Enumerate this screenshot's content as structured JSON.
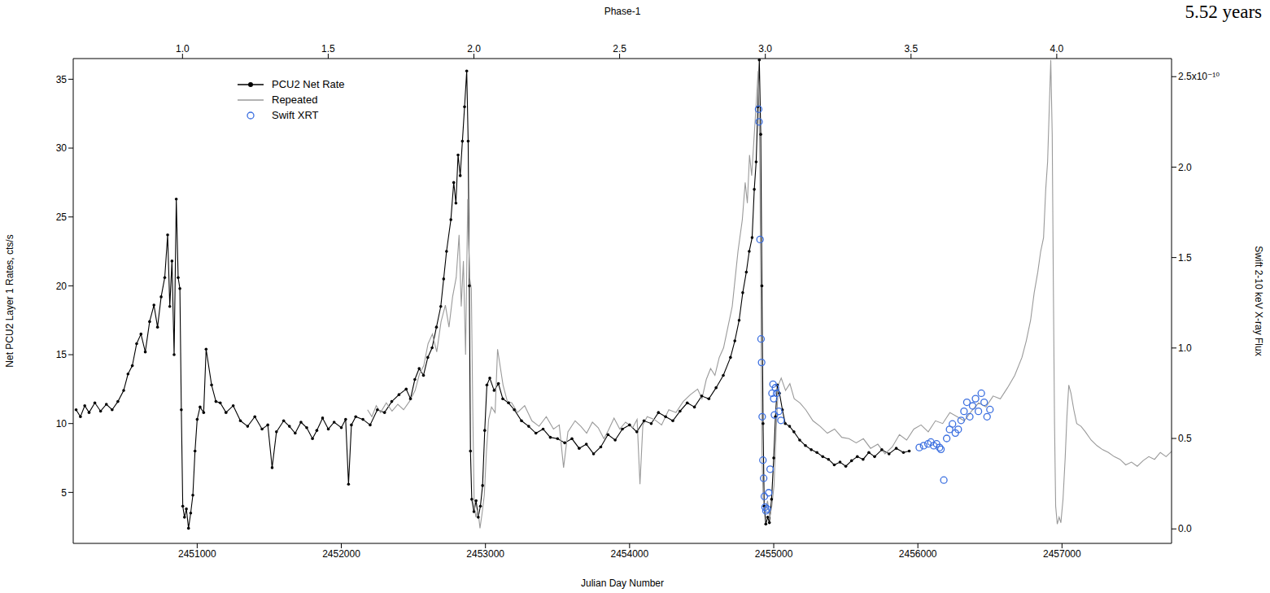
{
  "chart_data": {
    "type": "line",
    "xlabel": "Julian Day Number",
    "x2label": "Phase-1",
    "ylabel": "Net PCU2 Layer 1 Rates, cts/s",
    "y2label": "Swift 2-10 keV X-ray Flux",
    "annotations": [
      {
        "text": "5.52 years"
      }
    ],
    "legend": "upper left",
    "grid": false,
    "xlim": [
      2450140,
      2457760
    ],
    "xticks": [
      2451000,
      2452000,
      2453000,
      2454000,
      2455000,
      2456000,
      2457000
    ],
    "x2lim": [
      0.625,
      4.394
    ],
    "x2ticks": [
      {
        "value": 1,
        "label": "1.0"
      },
      1.5,
      {
        "value": 2,
        "label": "2.0"
      },
      2.5,
      {
        "value": 3,
        "label": "3.0"
      },
      3.5,
      {
        "value": 4,
        "label": "4.0"
      }
    ],
    "ylim": [
      1.3,
      36.5
    ],
    "yticks": [
      5,
      10,
      15,
      20,
      25,
      30,
      35
    ],
    "y2lim": [
      -0.08,
      2.6
    ],
    "y2ticks": [
      {
        "value": 0,
        "label": "0.0"
      },
      0.5,
      {
        "value": 1,
        "label": "1.0"
      },
      1.5,
      {
        "value": 2,
        "label": "2.0"
      },
      {
        "value": 2.5,
        "label": "2.5x10⁻¹⁰"
      }
    ],
    "series": [
      {
        "name": "PCU2 Net Rate",
        "color": "#000000",
        "marker": "circle",
        "line_style": "solid",
        "axis": "y",
        "x": [
          2450160,
          2450190,
          2450220,
          2450250,
          2450290,
          2450330,
          2450370,
          2450410,
          2450450,
          2450490,
          2450520,
          2450550,
          2450580,
          2450610,
          2450640,
          2450670,
          2450700,
          2450725,
          2450750,
          2450775,
          2450795,
          2450810,
          2450825,
          2450840,
          2450855,
          2450868,
          2450880,
          2450890,
          2450900,
          2450912,
          2450925,
          2450940,
          2450955,
          2450970,
          2450985,
          2451000,
          2451020,
          2451045,
          2451062,
          2451100,
          2451130,
          2451160,
          2451200,
          2451250,
          2451300,
          2451350,
          2451400,
          2451450,
          2451490,
          2451520,
          2451550,
          2451600,
          2451640,
          2451680,
          2451720,
          2451760,
          2451800,
          2451830,
          2451870,
          2451910,
          2451950,
          2452000,
          2452030,
          2452050,
          2452070,
          2452100,
          2452150,
          2452200,
          2452250,
          2452300,
          2452350,
          2452400,
          2452450,
          2452480,
          2452510,
          2452540,
          2452570,
          2452600,
          2452630,
          2452660,
          2452690,
          2452710,
          2452730,
          2452760,
          2452780,
          2452795,
          2452810,
          2452825,
          2452840,
          2452855,
          2452870,
          2452880,
          2452888,
          2452896,
          2452905,
          2452920,
          2452935,
          2452950,
          2452965,
          2452980,
          2452995,
          2453010,
          2453030,
          2453060,
          2453090,
          2453120,
          2453160,
          2453200,
          2453250,
          2453300,
          2453350,
          2453400,
          2453450,
          2453500,
          2453550,
          2453600,
          2453650,
          2453700,
          2453750,
          2453800,
          2453850,
          2453900,
          2453950,
          2454000,
          2454050,
          2454100,
          2454150,
          2454200,
          2454250,
          2454300,
          2454350,
          2454400,
          2454450,
          2454500,
          2454550,
          2454600,
          2454650,
          2454700,
          2454730,
          2454760,
          2454785,
          2454810,
          2454830,
          2454850,
          2454865,
          2454878,
          2454890,
          2454900,
          2454910,
          2454918,
          2454926,
          2454934,
          2454945,
          2454958,
          2454970,
          2454985,
          2455000,
          2455012,
          2455025,
          2455040,
          2455060,
          2455080,
          2455110,
          2455140,
          2455180,
          2455220,
          2455260,
          2455300,
          2455340,
          2455380,
          2455420,
          2455460,
          2455500,
          2455540,
          2455580,
          2455620,
          2455660,
          2455700,
          2455750,
          2455800,
          2455850,
          2455900,
          2455940
        ],
        "values": [
          11.0,
          10.5,
          11.3,
          10.8,
          11.5,
          10.9,
          11.4,
          11.0,
          11.6,
          12.4,
          13.6,
          14.2,
          15.8,
          16.5,
          15.2,
          17.4,
          18.6,
          17.0,
          19.2,
          20.6,
          23.7,
          18.5,
          21.8,
          15.0,
          26.3,
          20.6,
          19.8,
          11.0,
          4.0,
          3.2,
          3.8,
          2.4,
          3.5,
          4.8,
          8.0,
          10.3,
          11.2,
          10.8,
          15.4,
          12.8,
          11.6,
          11.5,
          10.8,
          11.3,
          10.2,
          9.8,
          10.5,
          9.6,
          9.9,
          6.8,
          9.4,
          10.2,
          9.8,
          9.3,
          10.1,
          9.7,
          8.9,
          9.5,
          10.4,
          9.6,
          10.1,
          9.7,
          10.3,
          5.6,
          9.9,
          10.5,
          10.3,
          9.9,
          11.0,
          10.8,
          11.6,
          12.1,
          12.5,
          11.8,
          13.2,
          14.0,
          13.5,
          14.8,
          15.5,
          17.0,
          18.5,
          20.5,
          22.5,
          24.8,
          27.5,
          26.0,
          29.5,
          28.0,
          30.5,
          33.0,
          35.6,
          30.5,
          20.0,
          8.0,
          4.5,
          3.6,
          4.4,
          3.2,
          4.0,
          5.5,
          9.5,
          12.8,
          13.3,
          12.4,
          12.9,
          11.8,
          11.5,
          11.0,
          10.2,
          9.8,
          9.3,
          9.6,
          9.0,
          8.9,
          8.6,
          8.9,
          8.2,
          8.5,
          7.8,
          8.3,
          9.2,
          8.8,
          9.6,
          9.9,
          9.4,
          10.2,
          10.0,
          10.8,
          10.5,
          10.2,
          10.9,
          11.5,
          11.2,
          12.0,
          11.8,
          12.6,
          13.5,
          14.8,
          16.0,
          17.5,
          19.5,
          21.0,
          22.5,
          23.5,
          27.0,
          29.0,
          33.0,
          36.4,
          31.0,
          20.0,
          10.0,
          4.0,
          2.7,
          3.2,
          2.8,
          4.5,
          7.5,
          10.5,
          12.8,
          12.2,
          11.0,
          10.0,
          9.8,
          9.4,
          8.8,
          8.4,
          8.1,
          7.9,
          7.6,
          7.4,
          7.0,
          7.2,
          6.9,
          7.3,
          7.6,
          7.4,
          7.9,
          7.6,
          8.1,
          7.8,
          8.2,
          7.9,
          8.0
        ]
      },
      {
        "name": "Repeated",
        "color": "#9a9a9a",
        "marker": "none",
        "line_style": "solid",
        "axis": "y",
        "x": [
          2452182,
          2452212,
          2452242,
          2452272,
          2452312,
          2452352,
          2452392,
          2452432,
          2452472,
          2452512,
          2452542,
          2452572,
          2452602,
          2452632,
          2452662,
          2452692,
          2452722,
          2452747,
          2452772,
          2452797,
          2452817,
          2452832,
          2452847,
          2452862,
          2452877,
          2452890,
          2452902,
          2452912,
          2452922,
          2452934,
          2452947,
          2452962,
          2452977,
          2452992,
          2453007,
          2453022,
          2453042,
          2453067,
          2453084,
          2453122,
          2453152,
          2453182,
          2453222,
          2453272,
          2453322,
          2453372,
          2453422,
          2453472,
          2453512,
          2453542,
          2453572,
          2453622,
          2453662,
          2453702,
          2453742,
          2453782,
          2453822,
          2453852,
          2453892,
          2453932,
          2453972,
          2454022,
          2454052,
          2454072,
          2454092,
          2454122,
          2454172,
          2454222,
          2454272,
          2454322,
          2454372,
          2454422,
          2454472,
          2454502,
          2454532,
          2454562,
          2454592,
          2454622,
          2454652,
          2454682,
          2454712,
          2454732,
          2454752,
          2454782,
          2454802,
          2454817,
          2454832,
          2454847,
          2454862,
          2454877,
          2454892,
          2454902,
          2454910,
          2454918,
          2454927,
          2454942,
          2454957,
          2454972,
          2454987,
          2455002,
          2455017,
          2455032,
          2455052,
          2455082,
          2455112,
          2455142,
          2455182,
          2455222,
          2455272,
          2455322,
          2455372,
          2455422,
          2455472,
          2455522,
          2455572,
          2455622,
          2455672,
          2455722,
          2455772,
          2455822,
          2455872,
          2455922,
          2455972,
          2456022,
          2456072,
          2456122,
          2456172,
          2456222,
          2456272,
          2456322,
          2456372,
          2456422,
          2456472,
          2456522,
          2456572,
          2456622,
          2456672,
          2456722,
          2456752,
          2456782,
          2456807,
          2456832,
          2456852,
          2456872,
          2456887,
          2456900,
          2456912,
          2456922,
          2456932,
          2456940,
          2456948,
          2456956,
          2456967,
          2456980,
          2456992,
          2457007,
          2457022,
          2457034,
          2457047,
          2457062,
          2457082,
          2457102,
          2457132,
          2457162,
          2457202,
          2457242,
          2457282,
          2457322,
          2457362,
          2457402,
          2457442,
          2457482,
          2457522,
          2457562,
          2457602,
          2457642,
          2457682,
          2457722,
          2457772
        ],
        "values": [
          11.0,
          10.5,
          11.3,
          10.8,
          11.5,
          10.9,
          11.4,
          11.0,
          11.6,
          12.4,
          13.6,
          14.2,
          15.8,
          16.5,
          15.2,
          17.4,
          18.6,
          17.0,
          19.2,
          20.6,
          23.7,
          18.5,
          21.8,
          15.0,
          26.3,
          20.6,
          19.8,
          11.0,
          4.0,
          3.2,
          3.8,
          2.4,
          3.5,
          4.8,
          8.0,
          10.3,
          11.2,
          10.8,
          15.4,
          12.8,
          11.6,
          11.5,
          10.8,
          11.3,
          10.2,
          9.8,
          10.5,
          9.6,
          9.9,
          6.8,
          9.4,
          10.2,
          9.8,
          9.3,
          10.1,
          9.7,
          8.9,
          9.5,
          10.4,
          9.6,
          10.1,
          9.7,
          10.3,
          5.6,
          9.9,
          10.5,
          10.3,
          9.9,
          11.0,
          10.8,
          11.6,
          12.1,
          12.5,
          11.8,
          13.2,
          14.0,
          13.5,
          14.8,
          15.5,
          17.0,
          18.5,
          20.5,
          22.5,
          24.8,
          27.5,
          26.0,
          29.5,
          28.0,
          30.5,
          33.0,
          35.6,
          30.5,
          20.0,
          8.0,
          4.5,
          3.6,
          4.4,
          3.2,
          4.0,
          5.5,
          9.5,
          12.8,
          13.3,
          12.4,
          12.9,
          11.8,
          11.5,
          11.0,
          10.2,
          9.8,
          9.3,
          9.6,
          9.0,
          8.9,
          8.6,
          8.9,
          8.2,
          8.5,
          7.8,
          8.3,
          9.2,
          8.8,
          9.6,
          9.9,
          9.4,
          10.2,
          10.0,
          10.8,
          10.5,
          10.2,
          10.9,
          11.5,
          11.2,
          12.0,
          11.8,
          12.6,
          13.5,
          14.8,
          16.0,
          17.5,
          19.5,
          21.0,
          22.5,
          23.5,
          27.0,
          29.0,
          33.0,
          36.4,
          31.0,
          20.0,
          10.0,
          4.0,
          2.7,
          3.2,
          2.8,
          4.5,
          7.5,
          10.5,
          12.8,
          12.2,
          11.0,
          10.0,
          9.8,
          9.4,
          8.8,
          8.4,
          8.1,
          7.9,
          7.6,
          7.4,
          7.0,
          7.2,
          6.9,
          7.3,
          7.6,
          7.4,
          7.9,
          7.6,
          8.1
        ]
      },
      {
        "name": "Swift XRT",
        "color": "#3b6fe0",
        "marker": "open_circle",
        "line_style": "none",
        "axis": "y2",
        "x": [
          2454895,
          2454898,
          2454905,
          2454912,
          2454916,
          2454920,
          2454925,
          2454930,
          2454935,
          2454940,
          2454946,
          2454955,
          2454965,
          2454975,
          2454988,
          2454995,
          2455000,
          2455005,
          2455012,
          2455020,
          2455035,
          2455050,
          2456010,
          2456040,
          2456070,
          2456090,
          2456110,
          2456130,
          2456150,
          2456160,
          2456180,
          2456200,
          2456220,
          2456240,
          2456260,
          2456280,
          2456300,
          2456320,
          2456340,
          2456360,
          2456380,
          2456400,
          2456420,
          2456440,
          2456460,
          2456480,
          2456500
        ],
        "values": [
          2.32,
          2.25,
          1.6,
          1.05,
          0.92,
          0.62,
          0.38,
          0.28,
          0.18,
          0.12,
          0.1,
          0.11,
          0.2,
          0.33,
          0.75,
          0.8,
          0.72,
          0.63,
          0.78,
          0.75,
          0.65,
          0.6,
          0.45,
          0.46,
          0.47,
          0.48,
          0.46,
          0.47,
          0.45,
          0.44,
          0.27,
          0.5,
          0.55,
          0.58,
          0.53,
          0.55,
          0.6,
          0.65,
          0.7,
          0.62,
          0.68,
          0.72,
          0.65,
          0.75,
          0.7,
          0.62,
          0.66
        ]
      }
    ]
  }
}
